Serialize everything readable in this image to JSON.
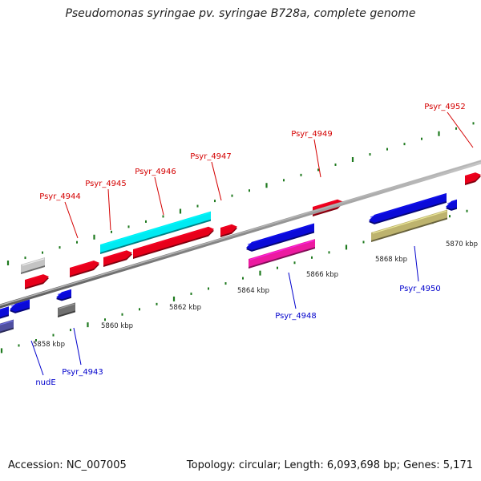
{
  "title": "Pseudomonas syringae pv. syringae B728a, complete genome",
  "footer": {
    "accession": "Accession: NC_007005",
    "summary": "Topology: circular; Length: 6,093,698 bp; Genes: 5,171"
  },
  "colors": {
    "backbone": "#8c8c8c",
    "tick": "#1f7a1f",
    "forward_label": "#d40000",
    "reverse_label": "#0000cc"
  },
  "scale_labels": [
    "5858 kbp",
    "5860 kbp",
    "5862 kbp",
    "5864 kbp",
    "5866 kbp",
    "5868 kbp",
    "5870 kbp"
  ],
  "genes_top": [
    {
      "name": "Psyr_4944",
      "color": "#e8001a"
    },
    {
      "name": "Psyr_4945",
      "color": "#e8001a"
    },
    {
      "name": "Psyr_4946",
      "color": "#e8001a"
    },
    {
      "name": "Psyr_4947",
      "color": "#e8001a"
    },
    {
      "name": "Psyr_4949",
      "color": "#e8001a"
    },
    {
      "name": "Psyr_4952",
      "color": "#e8001a"
    }
  ],
  "genes_bottom": [
    {
      "name": "nudE",
      "color": "#0a0ad8"
    },
    {
      "name": "Psyr_4943",
      "color": "#0a0ad8"
    },
    {
      "name": "Psyr_4948",
      "color": "#0a0ad8"
    },
    {
      "name": "Psyr_4950",
      "color": "#0a0ad8"
    }
  ]
}
